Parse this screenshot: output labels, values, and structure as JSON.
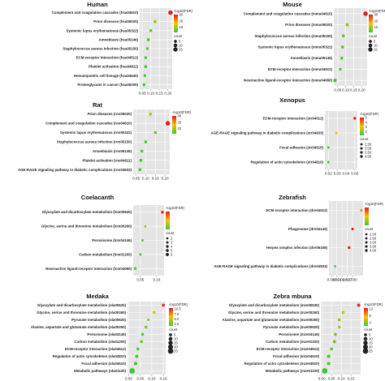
{
  "legend_labels": {
    "fdr_title": "-log10(FDR)",
    "count_title": "count"
  },
  "colors": {
    "panel_bg": "#e5e5e5",
    "grid": "#ffffff",
    "high": "#e41a1c",
    "mid": "#ffc000",
    "low": "#33cc33"
  },
  "chart_data": [
    {
      "type": "scatter",
      "title": "Human",
      "categories": [
        "Complement and coagulation cascades (hsa04610)",
        "Prion diseases (hsa05020)",
        "Systemic lupus erythematosus (hsa05322)",
        "Amoebiasis (hsa05146)",
        "Staphylococcus aureus infection (hsa05150)",
        "ECM-receptor interaction (hsa04512)",
        "Platelet activation (hsa04611)",
        "Hematopoietic cell lineage (hsa04640)",
        "Proteoglycans in cancer (hsa05205)"
      ],
      "x": [
        0.215,
        0.125,
        0.1,
        0.085,
        0.08,
        0.07,
        0.07,
        0.065,
        0.06
      ],
      "fdr": [
        30,
        9,
        5,
        4,
        3.5,
        3,
        2.8,
        2.5,
        2.2
      ],
      "count": [
        15,
        6,
        5,
        6,
        4,
        4,
        5,
        4,
        5
      ],
      "xticks": [
        0.05,
        0.1,
        0.15,
        0.2
      ],
      "xtick_labels": [
        "0.05",
        "0.10",
        "0.15",
        "0.20"
      ],
      "xlim": [
        0.035,
        0.225
      ],
      "legend_color": {
        "ticks": [
          30,
          20,
          10
        ],
        "labels": [
          "30",
          "20",
          "10"
        ],
        "min": 2,
        "max": 30
      },
      "legend_size": {
        "values": [
          5,
          10,
          15
        ],
        "labels": [
          "5",
          "10",
          "15"
        ]
      }
    },
    {
      "type": "scatter",
      "title": "Mouse",
      "categories": [
        "Complement and coagulation cascades (mmu04610)",
        "Prion diseases (mmu05020)",
        "Staphylococcus aureus infection (mmu05150)",
        "Systemic lupus erythematosus (mmu05322)",
        "Amoebiasis (mmu05146)",
        "ECM-receptor interaction (mmu04512)",
        "Neuroactive ligand-receptor interaction (mmu04080)"
      ],
      "x": [
        0.225,
        0.11,
        0.085,
        0.08,
        0.075,
        0.065,
        0.032
      ],
      "fdr": [
        30,
        8,
        5,
        4,
        3.5,
        3,
        2
      ],
      "count": [
        15,
        6,
        5,
        5,
        5,
        4,
        7
      ],
      "xticks": [
        0.05,
        0.1,
        0.15,
        0.2
      ],
      "xtick_labels": [
        "0.05",
        "0.10",
        "0.15",
        "0.20"
      ],
      "xlim": [
        0.025,
        0.235
      ],
      "legend_color": {
        "ticks": [
          30,
          20,
          10
        ],
        "labels": [
          "30",
          "20",
          "10"
        ],
        "min": 2,
        "max": 30
      },
      "legend_size": {
        "values": [
          5,
          10,
          15
        ],
        "labels": [
          "5",
          "10",
          "15"
        ]
      }
    },
    {
      "type": "scatter",
      "title": "Rat",
      "categories": [
        "Prion diseases (rno05020)",
        "Complement and coagulation cascades (rno04610)",
        "Systemic lupus erythematosus (rno05322)",
        "Staphylococcus aureus infection (rno05150)",
        "Amoebiasis (rno05146)",
        "Platelet activation (rno04611)",
        "AGE-RAGE signaling pathway in diabetic complications (rno04933)"
      ],
      "x": [
        0.125,
        0.215,
        0.15,
        0.1,
        0.08,
        0.075,
        0.07
      ],
      "fdr": [
        12,
        30,
        6,
        4,
        3.5,
        3,
        3
      ],
      "count": [
        6,
        15,
        5,
        5,
        5,
        5,
        5
      ],
      "xticks": [
        0.05,
        0.1,
        0.15,
        0.2
      ],
      "xtick_labels": [
        "0.05",
        "0.10",
        "0.15",
        "0.20"
      ],
      "xlim": [
        0.035,
        0.225
      ],
      "legend_color": {
        "ticks": [
          30,
          20,
          10
        ],
        "labels": [
          "30",
          "20",
          "10"
        ],
        "min": 2,
        "max": 30
      },
      "legend_size": {
        "values": [],
        "labels": []
      }
    },
    {
      "type": "scatter",
      "title": "Xenopus",
      "categories": [
        "ECM-receptor interaction (xtr04512)",
        "AGE-RAGE signaling pathway in diabetic complications (xtr04933)",
        "Focal adhesion (xtr04510)",
        "Regulation of actin cytoskeleton (xtr04810)"
      ],
      "x": [
        0.05,
        0.029,
        0.02,
        0.02
      ],
      "fdr": [
        5,
        3,
        1.5,
        1.2
      ],
      "count": [
        4,
        3,
        3,
        3
      ],
      "xticks": [
        0.02,
        0.03,
        0.04,
        0.05
      ],
      "xtick_labels": [
        "0.02",
        "0.03",
        "0.04",
        "0.05"
      ],
      "xlim": [
        0.016,
        0.053
      ],
      "legend_color": {
        "ticks": [
          5,
          4,
          3,
          2
        ],
        "labels": [
          "5",
          "4",
          "3",
          "2"
        ],
        "min": 1.2,
        "max": 5
      },
      "legend_size": {
        "values": [
          2.5,
          3,
          3.5,
          4
        ],
        "labels": [
          "2.50",
          "3.00",
          "3.50",
          "4.00"
        ]
      }
    },
    {
      "type": "scatter",
      "title": "Coelacanth",
      "categories": [
        "Glyoxylate and dicarboxylate metabolism (lcm00630)",
        "Glycine, serine and threonine metabolism (lcm00260)",
        "Peroxisome (lcm04146)",
        "Carbon metabolism (lcm01200)",
        "Neuroactive ligand-receptor interaction (lcm04080)"
      ],
      "x": [
        0.118,
        0.065,
        0.057,
        0.05,
        0.034
      ],
      "fdr": [
        8,
        3,
        2.5,
        2.2,
        1.8
      ],
      "count": [
        4,
        2,
        3,
        3,
        4
      ],
      "xticks": [
        0.05,
        0.1
      ],
      "xtick_labels": [
        "0.05",
        "0.10"
      ],
      "xlim": [
        0.028,
        0.123
      ],
      "legend_color": {
        "ticks": [],
        "labels": [],
        "min": 1.8,
        "max": 8
      },
      "legend_size": {
        "values": [
          2,
          3,
          4,
          5,
          6
        ],
        "labels": [
          "2",
          "3",
          "4",
          "5",
          "6"
        ]
      }
    },
    {
      "type": "scatter",
      "title": "Zebrafish",
      "categories": [
        "ECM-receptor interaction (dre04512)",
        "Phagosome (dre04145)",
        "Herpes simplex infection (dre05168)",
        "AGE-RAGE signaling pathway in diabetic complications (dre04933)"
      ],
      "x": [
        0.035,
        0.03,
        0.028,
        0.02
      ],
      "fdr": [
        4,
        5,
        5,
        2
      ],
      "count": [
        3,
        3,
        4,
        2
      ],
      "xticks": [
        0.018,
        0.021,
        0.024,
        0.027,
        0.03
      ],
      "xtick_labels": [
        "0.018",
        "0.021",
        "0.024",
        "0.027",
        "0.030"
      ],
      "xlim": [
        0.0165,
        0.036
      ],
      "legend_color": {
        "ticks": [],
        "labels": [],
        "min": 2,
        "max": 5
      },
      "legend_size": {
        "values": [
          2,
          2.5,
          3,
          3.5,
          4
        ],
        "labels": [
          "2.00",
          "2.50",
          "3.00",
          "3.50",
          "4.00"
        ]
      }
    },
    {
      "type": "scatter",
      "title": "Medaka",
      "categories": [
        "Glyoxylate and dicarboxylate metabolism (ola00630)",
        "Glycine, serine and threonine metabolism (ola00260)",
        "Pyruvate metabolism (ola00620)",
        "Alanine, aspartate and glutamate metabolism (ola00250)",
        "Peroxisome (ola04146)",
        "Carbon metabolism (ola01200)",
        "ECM-receptor interaction (ola04512)",
        "Regulation of actin cytoskeleton (ola04810)",
        "Focal adhesion (ola04510)",
        "Metabolic pathways (ola01100)"
      ],
      "x": [
        0.15,
        0.11,
        0.085,
        0.075,
        0.06,
        0.055,
        0.04,
        0.035,
        0.03,
        0.015
      ],
      "fdr": [
        10,
        5,
        3.5,
        3,
        2.5,
        2.5,
        2,
        1.8,
        1.7,
        1.5
      ],
      "count": [
        5,
        4,
        3,
        4,
        5,
        5,
        5,
        6,
        8,
        25
      ],
      "xticks": [
        0,
        0.05,
        0.1,
        0.15
      ],
      "xtick_labels": [
        "0.00",
        "0.05",
        "0.10",
        "0.15"
      ],
      "xlim": [
        -0.005,
        0.16
      ],
      "legend_color": {
        "ticks": [
          10,
          7.5,
          5,
          2.5
        ],
        "labels": [
          "10.0",
          "7.5",
          "5.0",
          "2.5"
        ],
        "min": 1.5,
        "max": 10.5
      },
      "legend_size": {
        "values": [
          5,
          10,
          15,
          20,
          25
        ],
        "labels": [
          "5",
          "10",
          "15",
          "20",
          "25"
        ]
      }
    },
    {
      "type": "scatter",
      "title": "Zebra mbuna",
      "categories": [
        "Glyoxylate and dicarboxylate metabolism (mze00630)",
        "Glycine, serine and threonine metabolism (mze00260)",
        "Alanine, aspartate and glutamate metabolism (mze00250)",
        "Pyruvate metabolism (mze00620)",
        "Peroxisome (mze04146)",
        "Carbon metabolism (mze01200)",
        "ECM-receptor interaction (mze04512)",
        "Focal adhesion (mze04510)",
        "Regulation of actin cytoskeleton (mze04810)",
        "Metabolic pathways (mze01100)"
      ],
      "x": [
        0.19,
        0.11,
        0.09,
        0.09,
        0.07,
        0.065,
        0.05,
        0.035,
        0.035,
        0.015
      ],
      "fdr": [
        12,
        6,
        5,
        5,
        3.5,
        3.5,
        3,
        2.5,
        2.5,
        2
      ],
      "count": [
        6,
        5,
        5,
        4,
        5,
        6,
        5,
        8,
        7,
        26
      ],
      "xticks": [
        0,
        0.05,
        0.1,
        0.15
      ],
      "xtick_labels": [
        "0.00",
        "0.05",
        "0.10",
        "0.15"
      ],
      "xlim": [
        -0.005,
        0.2
      ],
      "legend_color": {
        "ticks": [
          12,
          8,
          4
        ],
        "labels": [
          "12",
          "8",
          "4"
        ],
        "min": 2,
        "max": 12.5
      },
      "legend_size": {
        "values": [
          5,
          10,
          15,
          20,
          25
        ],
        "labels": [
          "5",
          "10",
          "15",
          "20",
          "25"
        ]
      }
    }
  ]
}
